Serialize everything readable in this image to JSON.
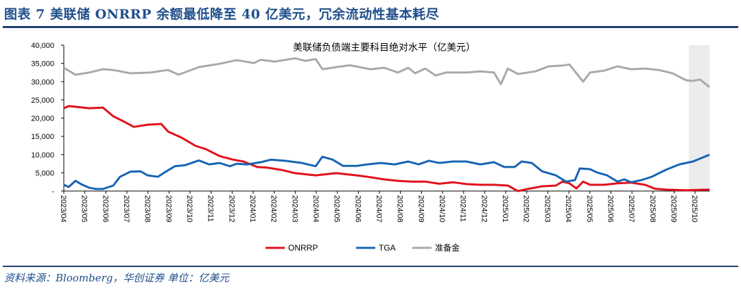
{
  "header": {
    "title": "图表 7   美联储 ONRRP 余额最低降至 40 亿美元，冗余流动性基本耗尽"
  },
  "source": "资料来源：Bloomberg，华创证券   单位：亿美元",
  "chart_data": {
    "type": "line",
    "title": "美联储负债端主要科目绝对水平（亿美元）",
    "x_unit": "months since 2023/04",
    "x_ticks": [
      "2023/04",
      "2023/05",
      "2023/06",
      "2023/07",
      "2023/08",
      "2023/09",
      "2023/10",
      "2023/11",
      "2023/12",
      "2024/01",
      "2024/02",
      "2024/03",
      "2024/04",
      "2024/05",
      "2024/06",
      "2024/07",
      "2024/08",
      "2024/09",
      "2024/10",
      "2024/11",
      "2024/12",
      "2025/01",
      "2025/02",
      "2025/03",
      "2025/04",
      "2025/05",
      "2025/06",
      "2025/07",
      "2025/08",
      "2025/09",
      "2025/10"
    ],
    "y_ticks": [
      "-",
      "5,000",
      "10,000",
      "15,000",
      "20,000",
      "25,000",
      "30,000",
      "35,000",
      "40,000"
    ],
    "ylim": [
      0,
      40000
    ],
    "xlim": [
      0,
      30.7
    ],
    "highlight_range": [
      29.7,
      30.7
    ],
    "legend_position": "bottom",
    "series": [
      {
        "name": "ONRRP",
        "color": "#e2101b",
        "points": [
          [
            0,
            22700
          ],
          [
            0.23,
            23300
          ],
          [
            1.21,
            22700
          ],
          [
            1.86,
            22900
          ],
          [
            2.35,
            20500
          ],
          [
            2.84,
            19100
          ],
          [
            3.33,
            17600
          ],
          [
            3.98,
            18200
          ],
          [
            4.63,
            18400
          ],
          [
            4.96,
            16300
          ],
          [
            5.61,
            14600
          ],
          [
            6.26,
            12400
          ],
          [
            6.75,
            11500
          ],
          [
            7.4,
            9600
          ],
          [
            8.05,
            8600
          ],
          [
            8.54,
            8100
          ],
          [
            9.19,
            6600
          ],
          [
            9.68,
            6400
          ],
          [
            10.34,
            5800
          ],
          [
            10.99,
            4900
          ],
          [
            11.97,
            4300
          ],
          [
            12.94,
            4900
          ],
          [
            13.92,
            4300
          ],
          [
            14.57,
            3800
          ],
          [
            15.23,
            3200
          ],
          [
            15.88,
            2800
          ],
          [
            16.53,
            2600
          ],
          [
            17.18,
            2600
          ],
          [
            17.84,
            2000
          ],
          [
            18.49,
            2400
          ],
          [
            19.14,
            1900
          ],
          [
            19.79,
            1700
          ],
          [
            20.44,
            1700
          ],
          [
            21.1,
            1500
          ],
          [
            21.58,
            0
          ],
          [
            22.07,
            600
          ],
          [
            22.73,
            1300
          ],
          [
            23.38,
            1500
          ],
          [
            23.7,
            2600
          ],
          [
            24.03,
            2100
          ],
          [
            24.36,
            700
          ],
          [
            24.68,
            2600
          ],
          [
            25.01,
            1700
          ],
          [
            25.66,
            1700
          ],
          [
            26.31,
            2100
          ],
          [
            26.96,
            2300
          ],
          [
            27.62,
            1700
          ],
          [
            28.11,
            600
          ],
          [
            28.6,
            400
          ],
          [
            29.57,
            200
          ],
          [
            30.68,
            400
          ]
        ]
      },
      {
        "name": "TGA",
        "color": "#1764b3",
        "points": [
          [
            0,
            1700
          ],
          [
            0.23,
            1100
          ],
          [
            0.55,
            2800
          ],
          [
            0.88,
            1700
          ],
          [
            1.21,
            900
          ],
          [
            1.53,
            560
          ],
          [
            1.86,
            560
          ],
          [
            2.35,
            1500
          ],
          [
            2.67,
            3900
          ],
          [
            3.16,
            5300
          ],
          [
            3.65,
            5400
          ],
          [
            3.98,
            4300
          ],
          [
            4.47,
            3900
          ],
          [
            4.79,
            5100
          ],
          [
            5.28,
            6800
          ],
          [
            5.77,
            7100
          ],
          [
            6.42,
            8400
          ],
          [
            6.91,
            7300
          ],
          [
            7.4,
            7700
          ],
          [
            7.89,
            6800
          ],
          [
            8.22,
            7500
          ],
          [
            8.71,
            7300
          ],
          [
            9.36,
            7900
          ],
          [
            9.85,
            8600
          ],
          [
            10.5,
            8300
          ],
          [
            11.31,
            7700
          ],
          [
            11.97,
            6800
          ],
          [
            12.29,
            9400
          ],
          [
            12.78,
            8600
          ],
          [
            13.27,
            6900
          ],
          [
            13.92,
            6900
          ],
          [
            14.41,
            7300
          ],
          [
            15.06,
            7700
          ],
          [
            15.72,
            7300
          ],
          [
            16.37,
            8100
          ],
          [
            16.86,
            7300
          ],
          [
            17.35,
            8300
          ],
          [
            17.84,
            7700
          ],
          [
            18.49,
            8100
          ],
          [
            19.14,
            8100
          ],
          [
            19.79,
            7300
          ],
          [
            20.44,
            7900
          ],
          [
            20.93,
            6600
          ],
          [
            21.42,
            6600
          ],
          [
            21.75,
            8100
          ],
          [
            22.24,
            7700
          ],
          [
            22.73,
            5400
          ],
          [
            23.38,
            4300
          ],
          [
            23.87,
            2600
          ],
          [
            24.29,
            3000
          ],
          [
            24.52,
            6200
          ],
          [
            25.01,
            6000
          ],
          [
            25.33,
            5100
          ],
          [
            25.82,
            4300
          ],
          [
            26.31,
            2600
          ],
          [
            26.64,
            3200
          ],
          [
            26.96,
            2400
          ],
          [
            27.45,
            3000
          ],
          [
            27.94,
            3900
          ],
          [
            28.6,
            5800
          ],
          [
            29.25,
            7300
          ],
          [
            29.9,
            8100
          ],
          [
            30.68,
            9950
          ]
        ]
      },
      {
        "name": "准备金",
        "color": "#a9a9a9",
        "points": [
          [
            0,
            33800
          ],
          [
            0.55,
            31900
          ],
          [
            1.21,
            32500
          ],
          [
            1.86,
            33400
          ],
          [
            2.35,
            33200
          ],
          [
            3.16,
            32300
          ],
          [
            4.14,
            32500
          ],
          [
            4.96,
            33200
          ],
          [
            5.45,
            31900
          ],
          [
            6.42,
            34000
          ],
          [
            7.4,
            34900
          ],
          [
            8.22,
            35900
          ],
          [
            9.03,
            35100
          ],
          [
            9.36,
            36000
          ],
          [
            10.01,
            35500
          ],
          [
            10.99,
            36400
          ],
          [
            11.48,
            35700
          ],
          [
            11.97,
            36200
          ],
          [
            12.29,
            33400
          ],
          [
            12.94,
            34000
          ],
          [
            13.6,
            34500
          ],
          [
            14.57,
            33400
          ],
          [
            15.23,
            33800
          ],
          [
            15.88,
            32500
          ],
          [
            16.37,
            33800
          ],
          [
            16.69,
            32300
          ],
          [
            17.18,
            33600
          ],
          [
            17.67,
            31700
          ],
          [
            18.16,
            32500
          ],
          [
            19.14,
            32500
          ],
          [
            19.79,
            32800
          ],
          [
            20.44,
            32500
          ],
          [
            20.77,
            29300
          ],
          [
            21.1,
            33600
          ],
          [
            21.58,
            32100
          ],
          [
            22.4,
            32800
          ],
          [
            23.05,
            34200
          ],
          [
            23.7,
            34400
          ],
          [
            24.03,
            34700
          ],
          [
            24.68,
            30000
          ],
          [
            25.01,
            32500
          ],
          [
            25.66,
            33000
          ],
          [
            26.31,
            34200
          ],
          [
            26.96,
            33400
          ],
          [
            27.62,
            33600
          ],
          [
            28.27,
            33200
          ],
          [
            28.92,
            32300
          ],
          [
            29.57,
            30400
          ],
          [
            29.9,
            30200
          ],
          [
            30.23,
            30600
          ],
          [
            30.68,
            28500
          ]
        ]
      }
    ]
  }
}
